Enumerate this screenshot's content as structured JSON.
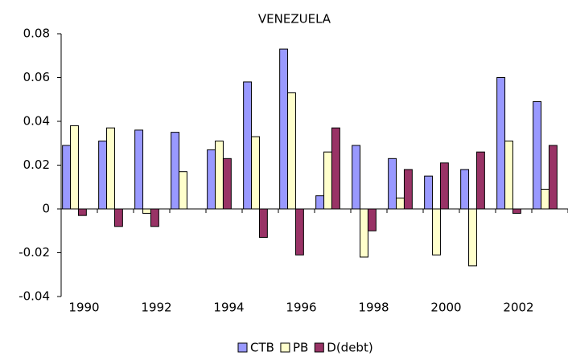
{
  "chart_data": {
    "type": "bar",
    "title": "VENEZUELA",
    "categories": [
      "1990",
      null,
      "1992",
      null,
      "1994",
      null,
      "1996",
      null,
      "1998",
      null,
      "2000",
      null,
      "2002",
      null
    ],
    "series": [
      {
        "name": "CTB",
        "color": "#9999ff",
        "values": [
          0.029,
          0.031,
          0.036,
          0.035,
          0.027,
          0.058,
          0.073,
          0.006,
          0.029,
          0.023,
          0.015,
          0.018,
          0.06,
          0.049
        ]
      },
      {
        "name": "PB",
        "color": "#ffffcc",
        "values": [
          0.038,
          0.037,
          -0.002,
          0.017,
          0.031,
          0.033,
          0.053,
          0.026,
          -0.022,
          0.005,
          -0.021,
          -0.026,
          0.031,
          0.009
        ]
      },
      {
        "name": "D(debt)",
        "color": "#993366",
        "values": [
          -0.003,
          -0.008,
          -0.008,
          0,
          0.023,
          -0.013,
          -0.021,
          0.037,
          -0.01,
          0.018,
          0.021,
          0.026,
          -0.002,
          0.029
        ]
      }
    ],
    "ylim": [
      -0.04,
      0.08
    ],
    "yticks": [
      -0.04,
      -0.02,
      0,
      0.02,
      0.04,
      0.06,
      0.08
    ],
    "grid": false,
    "legend": "bottom"
  }
}
